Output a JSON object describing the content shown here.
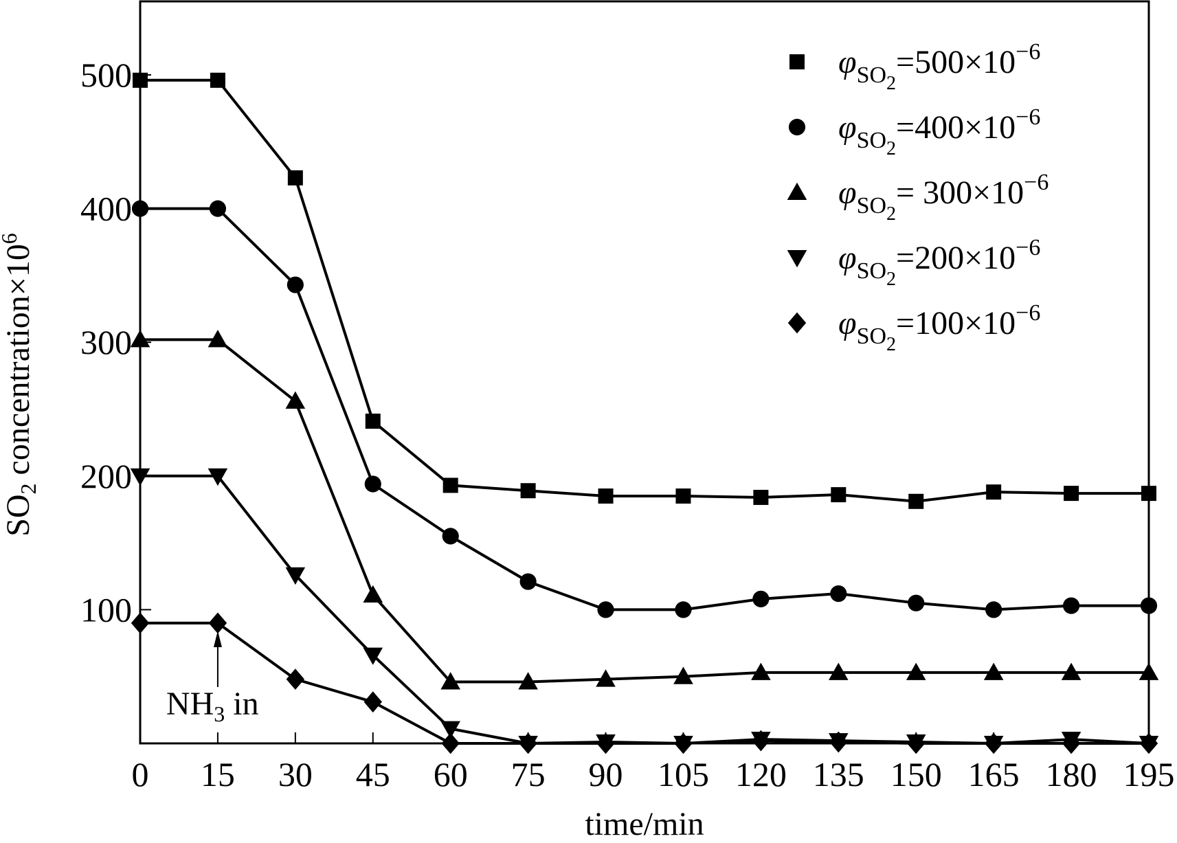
{
  "chart_data": {
    "type": "line",
    "title": "",
    "xlabel": "time/min",
    "ylabel": "SO₂ concentration×10⁶",
    "xlim": [
      0,
      195
    ],
    "ylim": [
      0,
      555
    ],
    "xticks": [
      0,
      15,
      30,
      45,
      60,
      75,
      90,
      105,
      120,
      135,
      150,
      165,
      180,
      195
    ],
    "yticks": [
      100,
      200,
      300,
      400,
      500
    ],
    "grid": false,
    "legend_position": "top-right",
    "x": [
      0,
      15,
      30,
      45,
      60,
      75,
      90,
      105,
      120,
      135,
      150,
      165,
      180,
      195
    ],
    "series": [
      {
        "name": "φSO₂=500×10⁻⁶",
        "marker": "square",
        "values": [
          496,
          496,
          423,
          241,
          193,
          189,
          185,
          185,
          184,
          186,
          181,
          188,
          187,
          187
        ]
      },
      {
        "name": "φSO₂=400×10⁻⁶",
        "marker": "circle",
        "values": [
          400,
          400,
          343,
          194,
          155,
          121,
          100,
          100,
          108,
          112,
          105,
          100,
          103,
          103
        ]
      },
      {
        "name": "φSO₂= 300×10⁻⁶",
        "marker": "triangle-up",
        "values": [
          302,
          302,
          256,
          111,
          46,
          46,
          48,
          50,
          53,
          53,
          53,
          53,
          53,
          53
        ]
      },
      {
        "name": "φSO₂=200×10⁻⁶",
        "marker": "triangle-down",
        "values": [
          200,
          200,
          126,
          66,
          11,
          0,
          1,
          0,
          3,
          2,
          1,
          0,
          3,
          0
        ]
      },
      {
        "name": "φSO₂=100×10⁻⁶",
        "marker": "diamond",
        "values": [
          90,
          90,
          48,
          31,
          0,
          0,
          0,
          0,
          2,
          1,
          0,
          0,
          0,
          0
        ]
      }
    ],
    "annotations": [
      {
        "text": "NH₃ in",
        "x": 15,
        "arrow": true
      }
    ]
  }
}
